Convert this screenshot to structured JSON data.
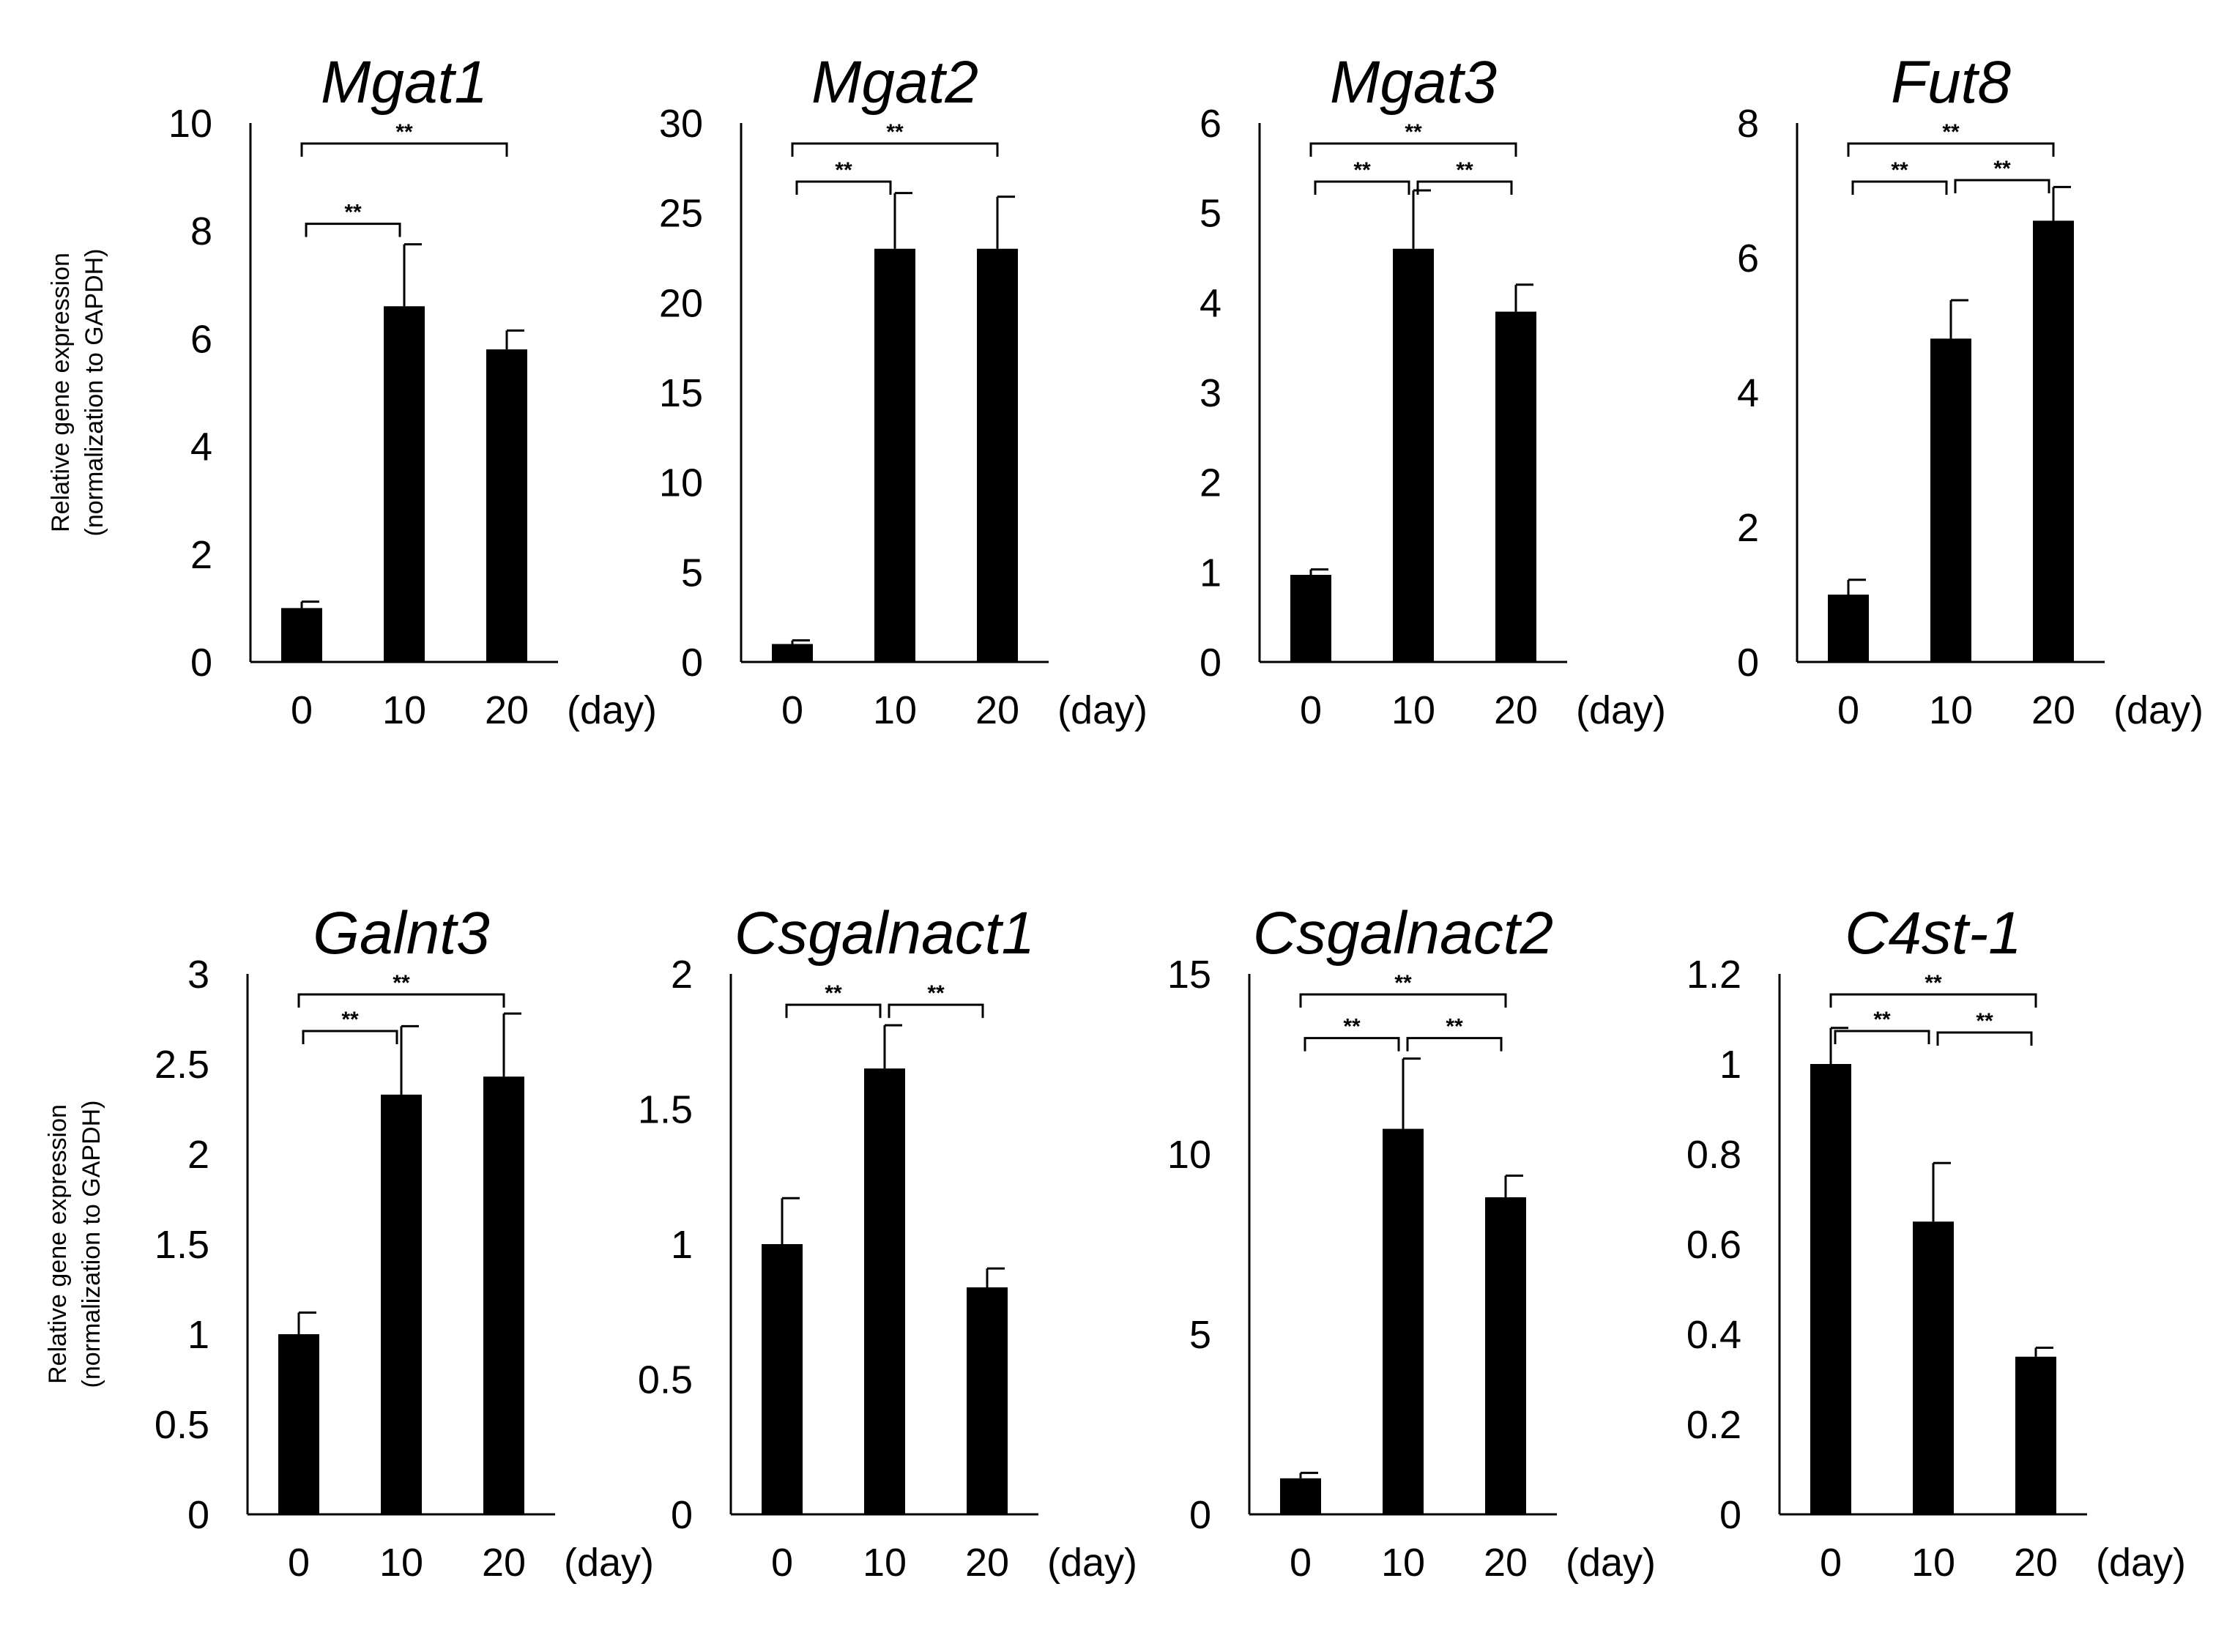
{
  "chart_data": [
    {
      "type": "bar",
      "title": "Mgat1",
      "categories": [
        "0",
        "10",
        "20"
      ],
      "unit_label": "(day)",
      "ylabel": [
        "Relative gene expression",
        "(normalization to GAPDH)"
      ],
      "ylim": [
        0,
        10
      ],
      "yticks": [
        "0",
        "2",
        "4",
        "6",
        "8",
        "10"
      ],
      "values": [
        1.0,
        6.6,
        5.8
      ],
      "errors": [
        0.12,
        1.15,
        0.35
      ],
      "significance": [
        {
          "from": 0,
          "to": 1,
          "label": "**"
        },
        {
          "from": 0,
          "to": 2,
          "label": "**"
        }
      ]
    },
    {
      "type": "bar",
      "title": "Mgat2",
      "categories": [
        "0",
        "10",
        "20"
      ],
      "unit_label": "(day)",
      "ylabel": [],
      "ylim": [
        0,
        30
      ],
      "yticks": [
        "0",
        "5",
        "10",
        "15",
        "20",
        "25",
        "30"
      ],
      "values": [
        1.0,
        23.0,
        23.0
      ],
      "errors": [
        0.2,
        3.1,
        2.9
      ],
      "significance": [
        {
          "from": 0,
          "to": 1,
          "label": "**"
        },
        {
          "from": 0,
          "to": 2,
          "label": "**"
        }
      ]
    },
    {
      "type": "bar",
      "title": "Mgat3",
      "categories": [
        "0",
        "10",
        "20"
      ],
      "unit_label": "(day)",
      "ylabel": [],
      "ylim": [
        0,
        6
      ],
      "yticks": [
        "0",
        "1",
        "2",
        "3",
        "4",
        "5",
        "6"
      ],
      "values": [
        0.97,
        4.6,
        3.9
      ],
      "errors": [
        0.06,
        0.65,
        0.3
      ],
      "significance": [
        {
          "from": 0,
          "to": 1,
          "label": "**"
        },
        {
          "from": 1,
          "to": 2,
          "label": "**"
        },
        {
          "from": 0,
          "to": 2,
          "label": "**"
        }
      ]
    },
    {
      "type": "bar",
      "title": "Fut8",
      "categories": [
        "0",
        "10",
        "20"
      ],
      "unit_label": "(day)",
      "ylabel": [],
      "ylim": [
        0,
        8
      ],
      "yticks": [
        "0",
        "2",
        "4",
        "6",
        "8"
      ],
      "values": [
        1.0,
        4.8,
        6.55
      ],
      "errors": [
        0.22,
        0.57,
        0.5
      ],
      "significance": [
        {
          "from": 0,
          "to": 1,
          "label": "**"
        },
        {
          "from": 1,
          "to": 2,
          "label": "**"
        },
        {
          "from": 0,
          "to": 2,
          "label": "**"
        }
      ]
    },
    {
      "type": "bar",
      "title": "Galnt3",
      "categories": [
        "0",
        "10",
        "20"
      ],
      "unit_label": "(day)",
      "ylabel": [
        "Relative gene expression",
        "(normalization to GAPDH)"
      ],
      "ylim": [
        0,
        3
      ],
      "yticks": [
        "0",
        "0.5",
        "1",
        "1.5",
        "2",
        "2.5",
        "3"
      ],
      "values": [
        1.0,
        2.33,
        2.43
      ],
      "errors": [
        0.12,
        0.38,
        0.35
      ],
      "significance": [
        {
          "from": 0,
          "to": 1,
          "label": "**"
        },
        {
          "from": 0,
          "to": 2,
          "label": "**"
        }
      ]
    },
    {
      "type": "bar",
      "title": "Csgalnact1",
      "categories": [
        "0",
        "10",
        "20"
      ],
      "unit_label": "(day)",
      "ylabel": [],
      "ylim": [
        0,
        2
      ],
      "yticks": [
        "0",
        "0.5",
        "1",
        "1.5",
        "2"
      ],
      "values": [
        1.0,
        1.65,
        0.84
      ],
      "errors": [
        0.17,
        0.16,
        0.07
      ],
      "significance": [
        {
          "from": 0,
          "to": 1,
          "label": "**"
        },
        {
          "from": 1,
          "to": 2,
          "label": "**"
        }
      ]
    },
    {
      "type": "bar",
      "title": "Csgalnact2",
      "categories": [
        "0",
        "10",
        "20"
      ],
      "unit_label": "(day)",
      "ylabel": [],
      "ylim": [
        0,
        15
      ],
      "yticks": [
        "0",
        "5",
        "10",
        "15"
      ],
      "values": [
        1.0,
        10.7,
        8.8
      ],
      "errors": [
        0.15,
        1.95,
        0.6
      ],
      "significance": [
        {
          "from": 0,
          "to": 1,
          "label": "**"
        },
        {
          "from": 1,
          "to": 2,
          "label": "**"
        },
        {
          "from": 0,
          "to": 2,
          "label": "**"
        }
      ]
    },
    {
      "type": "bar",
      "title": "C4st-1",
      "categories": [
        "0",
        "10",
        "20"
      ],
      "unit_label": "(day)",
      "ylabel": [],
      "ylim": [
        0,
        1.2
      ],
      "yticks": [
        "0",
        "0.2",
        "0.4",
        "0.6",
        "0.8",
        "1",
        "1.2"
      ],
      "values": [
        1.0,
        0.65,
        0.35
      ],
      "errors": [
        0.08,
        0.13,
        0.02
      ],
      "significance": [
        {
          "from": 0,
          "to": 1,
          "label": "**"
        },
        {
          "from": 1,
          "to": 2,
          "label": "**"
        },
        {
          "from": 0,
          "to": 2,
          "label": "**"
        }
      ]
    }
  ]
}
